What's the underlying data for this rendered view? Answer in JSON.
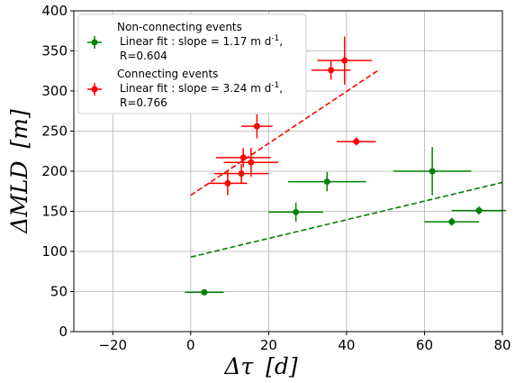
{
  "chart_data": {
    "type": "scatter",
    "xlabel_symbol": "Δτ",
    "xlabel_unit": "[d]",
    "ylabel_symbol": "ΔMLD",
    "ylabel_unit": "[m]",
    "xlim": [
      -30,
      80
    ],
    "ylim": [
      0,
      400
    ],
    "xticks": [
      -20,
      0,
      20,
      40,
      60,
      80
    ],
    "yticks": [
      0,
      50,
      100,
      150,
      200,
      250,
      300,
      350,
      400
    ],
    "grid": true,
    "legend_position": "upper-left",
    "series": [
      {
        "name": "Non-connecting events",
        "fit_label": "Linear fit : slope = 1.17 m d",
        "fit_superscript": "-1",
        "fit_label_end": ",",
        "r_label": "R=0.604",
        "color": "#008000",
        "points": [
          {
            "x": 3.5,
            "y": 49,
            "xerr": 5,
            "yerr": 2
          },
          {
            "x": 27,
            "y": 149,
            "xerr": 7,
            "yerr": 12
          },
          {
            "x": 35,
            "y": 187,
            "xerr": 10,
            "yerr": 12
          },
          {
            "x": 62,
            "y": 200,
            "xerr": 10,
            "yerr": 30
          },
          {
            "x": 67,
            "y": 137,
            "xerr": 7,
            "yerr": 5
          },
          {
            "x": 74,
            "y": 151,
            "xerr": 7,
            "yerr": 5
          }
        ],
        "fit": {
          "x": [
            0,
            80
          ],
          "y": [
            93,
            186
          ]
        }
      },
      {
        "name": "Connecting events",
        "fit_label": "Linear fit : slope = 3.24 m d",
        "fit_superscript": "-1",
        "fit_label_end": ",",
        "r_label": "R=0.766",
        "color": "#ff0000",
        "points": [
          {
            "x": 9.5,
            "y": 185,
            "xerr": 5,
            "yerr": 15
          },
          {
            "x": 13,
            "y": 197,
            "xerr": 7,
            "yerr": 12
          },
          {
            "x": 13.5,
            "y": 217,
            "xerr": 7,
            "yerr": 12
          },
          {
            "x": 15.5,
            "y": 211,
            "xerr": 7,
            "yerr": 18
          },
          {
            "x": 17,
            "y": 256,
            "xerr": 4,
            "yerr": 15
          },
          {
            "x": 36,
            "y": 326,
            "xerr": 5,
            "yerr": 12
          },
          {
            "x": 39.5,
            "y": 338,
            "xerr": 7,
            "yerr": 30
          },
          {
            "x": 42.5,
            "y": 237,
            "xerr": 5,
            "yerr": 5
          }
        ],
        "fit": {
          "x": [
            0,
            48.5
          ],
          "y": [
            170,
            327
          ]
        }
      }
    ]
  }
}
